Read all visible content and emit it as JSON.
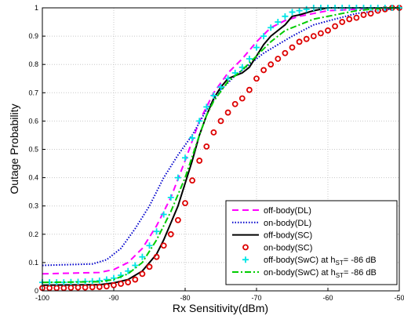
{
  "chart_data": {
    "type": "line",
    "xlabel": "Rx Sensitivity(dBm)",
    "ylabel": "Outage Probability",
    "xlim": [
      -100,
      -50
    ],
    "ylim": [
      0,
      1
    ],
    "xticks": [
      -100,
      -90,
      -80,
      -70,
      -60,
      -50
    ],
    "yticks": [
      0,
      0.1,
      0.2,
      0.3,
      0.4,
      0.5,
      0.6,
      0.7,
      0.8,
      0.9,
      1
    ],
    "grid": true,
    "legend_position": "bottom-right",
    "series": [
      {
        "name": "off-body(DL)",
        "style": "dashed",
        "color": "#ff00ff",
        "marker": "none",
        "x": [
          -100,
          -92,
          -90,
          -88,
          -86,
          -84,
          -82,
          -80,
          -78,
          -76,
          -74,
          -72,
          -70,
          -68,
          -66,
          -64,
          -62,
          -60,
          -56,
          -52,
          -50
        ],
        "y": [
          0.06,
          0.065,
          0.075,
          0.1,
          0.15,
          0.23,
          0.33,
          0.46,
          0.6,
          0.7,
          0.77,
          0.82,
          0.88,
          0.93,
          0.955,
          0.97,
          0.98,
          0.99,
          0.995,
          1.0,
          1.0
        ]
      },
      {
        "name": "on-body(DL)",
        "style": "dotted",
        "color": "#0000cc",
        "marker": "none",
        "x": [
          -100,
          -93,
          -91,
          -89,
          -87,
          -85,
          -83,
          -81,
          -79,
          -77,
          -75,
          -73,
          -71,
          -69,
          -67,
          -65,
          -62,
          -59,
          -56,
          -53,
          -50
        ],
        "y": [
          0.09,
          0.095,
          0.11,
          0.15,
          0.22,
          0.3,
          0.4,
          0.48,
          0.55,
          0.64,
          0.71,
          0.76,
          0.8,
          0.84,
          0.87,
          0.9,
          0.94,
          0.96,
          0.98,
          0.99,
          1.0
        ]
      },
      {
        "name": "off-body(SC)",
        "style": "solid",
        "color": "#000000",
        "marker": "none",
        "x": [
          -100,
          -92,
          -90,
          -88,
          -86,
          -84,
          -83,
          -82,
          -81,
          -80,
          -79,
          -78,
          -77,
          -76,
          -75,
          -74,
          -73,
          -72,
          -71,
          -70,
          -69,
          -68,
          -67,
          -66,
          -65,
          -64,
          -62,
          -60,
          -58,
          -56,
          -54,
          -52,
          -50
        ],
        "y": [
          0.02,
          0.022,
          0.028,
          0.04,
          0.07,
          0.13,
          0.18,
          0.24,
          0.3,
          0.38,
          0.46,
          0.55,
          0.62,
          0.68,
          0.72,
          0.75,
          0.76,
          0.77,
          0.79,
          0.83,
          0.87,
          0.9,
          0.92,
          0.94,
          0.97,
          0.975,
          0.99,
          1.0,
          1.0,
          1.0,
          1.0,
          1.0,
          1.0
        ]
      },
      {
        "name": "on-body(SC)",
        "style": "none",
        "color": "#dd0000",
        "marker": "circle",
        "x": [
          -100,
          -99,
          -98,
          -97,
          -96,
          -95,
          -94,
          -93,
          -92,
          -91,
          -90,
          -89,
          -88,
          -87,
          -86,
          -85,
          -84,
          -83,
          -82,
          -81,
          -80,
          -79,
          -78,
          -77,
          -76,
          -75,
          -74,
          -73,
          -72,
          -71,
          -70,
          -69,
          -68,
          -67,
          -66,
          -65,
          -64,
          -63,
          -62,
          -61,
          -60,
          -59,
          -58,
          -57,
          -56,
          -55,
          -54,
          -53,
          -52,
          -51,
          -50
        ],
        "y": [
          0.01,
          0.01,
          0.01,
          0.01,
          0.011,
          0.012,
          0.012,
          0.013,
          0.014,
          0.016,
          0.02,
          0.025,
          0.03,
          0.04,
          0.06,
          0.085,
          0.12,
          0.16,
          0.2,
          0.25,
          0.31,
          0.39,
          0.46,
          0.51,
          0.56,
          0.6,
          0.63,
          0.66,
          0.68,
          0.71,
          0.75,
          0.78,
          0.8,
          0.82,
          0.84,
          0.86,
          0.88,
          0.89,
          0.9,
          0.91,
          0.92,
          0.935,
          0.95,
          0.96,
          0.965,
          0.975,
          0.98,
          0.99,
          0.995,
          1.0,
          1.0
        ]
      },
      {
        "name": "off-body(SwC) at h_ST= -86 dB",
        "style": "none",
        "color": "#00e5e5",
        "marker": "plus",
        "x": [
          -100,
          -99,
          -98,
          -97,
          -96,
          -95,
          -94,
          -93,
          -92,
          -91,
          -90,
          -89,
          -88,
          -87,
          -86,
          -85,
          -84,
          -83,
          -82,
          -81,
          -80,
          -79,
          -78,
          -77,
          -76,
          -75,
          -74,
          -73,
          -72,
          -71,
          -70,
          -69,
          -68,
          -67,
          -66,
          -65,
          -64,
          -63,
          -62,
          -61,
          -60,
          -59,
          -58,
          -57,
          -56,
          -55,
          -54,
          -53,
          -52,
          -51,
          -50
        ],
        "y": [
          0.03,
          0.03,
          0.03,
          0.03,
          0.031,
          0.032,
          0.033,
          0.034,
          0.036,
          0.04,
          0.045,
          0.055,
          0.07,
          0.09,
          0.12,
          0.16,
          0.21,
          0.27,
          0.33,
          0.4,
          0.47,
          0.54,
          0.6,
          0.65,
          0.69,
          0.72,
          0.75,
          0.77,
          0.79,
          0.82,
          0.86,
          0.9,
          0.93,
          0.95,
          0.97,
          0.985,
          0.99,
          0.995,
          1.0,
          1.0,
          1.0,
          1.0,
          1.0,
          1.0,
          1.0,
          1.0,
          1.0,
          1.0,
          1.0,
          1.0,
          1.0
        ]
      },
      {
        "name": "on-body(SwC) at h_ST= -86 dB",
        "style": "dashdot",
        "color": "#00cc00",
        "marker": "none",
        "x": [
          -100,
          -92,
          -90,
          -88,
          -86,
          -84,
          -82,
          -80,
          -78,
          -77,
          -76,
          -74,
          -72,
          -70,
          -68,
          -66,
          -64,
          -62,
          -60,
          -58,
          -56,
          -54,
          -52,
          -50
        ],
        "y": [
          0.03,
          0.032,
          0.04,
          0.06,
          0.1,
          0.18,
          0.28,
          0.4,
          0.55,
          0.62,
          0.67,
          0.74,
          0.78,
          0.83,
          0.88,
          0.92,
          0.94,
          0.96,
          0.97,
          0.98,
          0.99,
          0.995,
          1.0,
          1.0
        ]
      }
    ]
  }
}
